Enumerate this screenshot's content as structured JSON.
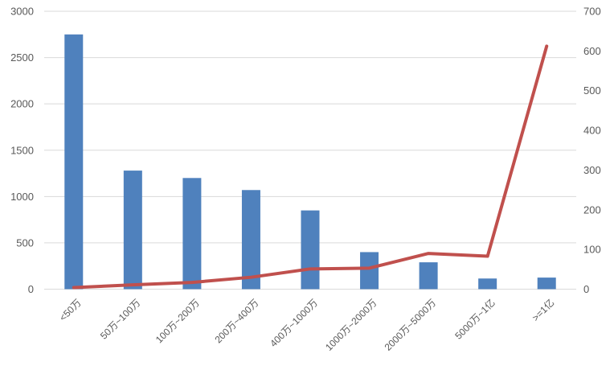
{
  "chart_data": {
    "type": "combo",
    "title": "",
    "categories": [
      "<50万",
      "50万~100万",
      "100万~200万",
      "200万~400万",
      "400万~1000万",
      "1000万~2000万",
      "2000万~5000万",
      "5000万~1亿",
      ">=1亿"
    ],
    "series": [
      {
        "type": "bar",
        "axis": "left",
        "color": "#4f81bd",
        "values": [
          2750,
          1280,
          1200,
          1070,
          850,
          400,
          290,
          115,
          125
        ]
      },
      {
        "type": "line",
        "axis": "right",
        "color": "#c0504d",
        "values": [
          4,
          11,
          17,
          30,
          51,
          53,
          90,
          83,
          612
        ]
      }
    ],
    "left_axis": {
      "min": 0,
      "max": 3000,
      "step": 500,
      "tick_labels": [
        "0",
        "500",
        "1000",
        "1500",
        "2000",
        "2500",
        "3000"
      ]
    },
    "right_axis": {
      "min": 0,
      "max": 700,
      "step": 100,
      "tick_labels": [
        "0",
        "100",
        "200",
        "300",
        "400",
        "500",
        "600",
        "700"
      ]
    },
    "layout": {
      "grid": true,
      "legend": false,
      "x_label_rotation": -45
    },
    "colors": {
      "bar": "#4f81bd",
      "line": "#c0504d",
      "gridline": "#d9d9d9",
      "tick_text": "#595959",
      "background": "#ffffff"
    }
  }
}
